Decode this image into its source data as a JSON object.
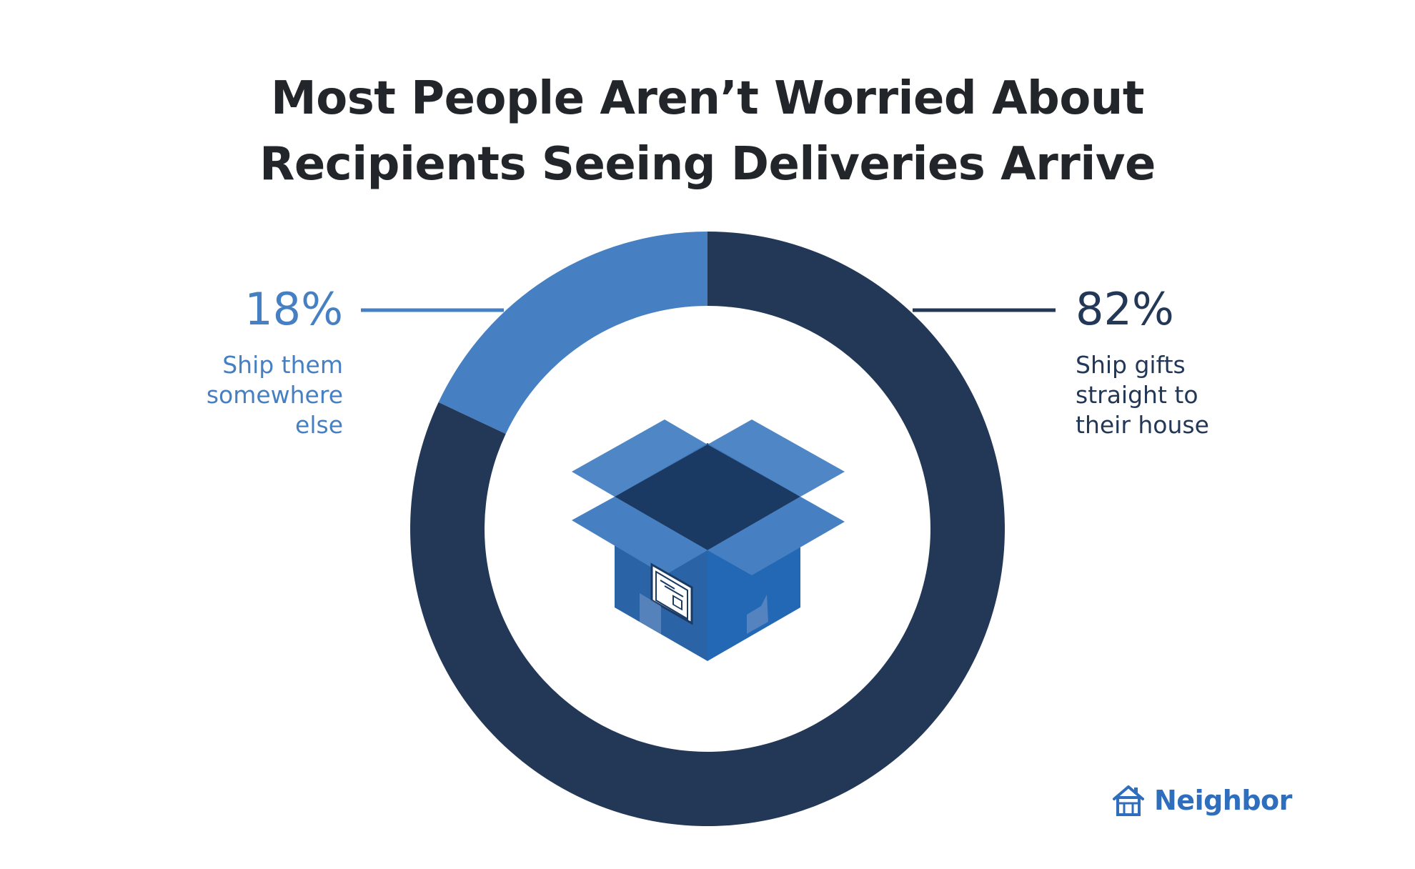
{
  "title_lines": [
    "Most People Aren’t Worried About",
    "Recipients Seeing Deliveries Arrive"
  ],
  "chart_data": {
    "type": "pie",
    "title": "Most People Aren’t Worried About Recipients Seeing Deliveries Arrive",
    "donut": true,
    "categories": [
      "Ship them somewhere else",
      "Ship gifts straight to their house"
    ],
    "values": [
      18,
      82
    ],
    "value_labels": [
      "18%",
      "82%"
    ],
    "colors": [
      "#4680c2",
      "#233757"
    ],
    "start_angle_deg": 0,
    "direction": "counterclockwise-for-first-slice"
  },
  "left_label": {
    "percent": "18%",
    "lines": [
      "Ship them",
      "somewhere",
      "else"
    ],
    "color": "#4680c2"
  },
  "right_label": {
    "percent": "82%",
    "lines": [
      "Ship gifts",
      "straight to",
      "their house"
    ],
    "color": "#233757"
  },
  "center_icon": "open-cardboard-box-icon",
  "brand": {
    "name": "Neighbor",
    "icon": "house-logo-icon",
    "color": "#2f6dbd"
  }
}
